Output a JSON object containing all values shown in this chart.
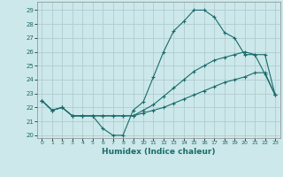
{
  "title": "",
  "xlabel": "Humidex (Indice chaleur)",
  "bg_color": "#cce8ea",
  "grid_color": "#b0ccd0",
  "line_color": "#1a6b6b",
  "xlim": [
    -0.5,
    23.5
  ],
  "ylim": [
    19.8,
    29.6
  ],
  "xticks": [
    0,
    1,
    2,
    3,
    4,
    5,
    6,
    7,
    8,
    9,
    10,
    11,
    12,
    13,
    14,
    15,
    16,
    17,
    18,
    19,
    20,
    21,
    22,
    23
  ],
  "yticks": [
    20,
    21,
    22,
    23,
    24,
    25,
    26,
    27,
    28,
    29
  ],
  "series1_x": [
    0,
    1,
    2,
    3,
    4,
    5,
    6,
    7,
    8,
    9,
    10,
    11,
    12,
    13,
    14,
    15,
    16,
    17,
    18,
    19,
    20,
    21,
    22,
    23
  ],
  "series1_y": [
    22.5,
    21.8,
    22.0,
    21.4,
    21.4,
    21.4,
    20.5,
    20.0,
    20.0,
    21.8,
    22.4,
    24.2,
    26.0,
    27.5,
    28.2,
    29.0,
    29.0,
    28.5,
    27.4,
    27.0,
    25.8,
    25.8,
    24.4,
    22.9
  ],
  "series2_x": [
    0,
    1,
    2,
    3,
    4,
    5,
    6,
    7,
    8,
    9,
    10,
    11,
    12,
    13,
    14,
    15,
    16,
    17,
    18,
    19,
    20,
    21,
    22,
    23
  ],
  "series2_y": [
    22.5,
    21.8,
    22.0,
    21.4,
    21.4,
    21.4,
    21.4,
    21.4,
    21.4,
    21.4,
    21.8,
    22.2,
    22.8,
    23.4,
    24.0,
    24.6,
    25.0,
    25.4,
    25.6,
    25.8,
    26.0,
    25.8,
    25.8,
    22.9
  ],
  "series3_x": [
    0,
    1,
    2,
    3,
    4,
    5,
    6,
    7,
    8,
    9,
    10,
    11,
    12,
    13,
    14,
    15,
    16,
    17,
    18,
    19,
    20,
    21,
    22,
    23
  ],
  "series3_y": [
    22.5,
    21.8,
    22.0,
    21.4,
    21.4,
    21.4,
    21.4,
    21.4,
    21.4,
    21.4,
    21.6,
    21.8,
    22.0,
    22.3,
    22.6,
    22.9,
    23.2,
    23.5,
    23.8,
    24.0,
    24.2,
    24.5,
    24.5,
    22.9
  ]
}
